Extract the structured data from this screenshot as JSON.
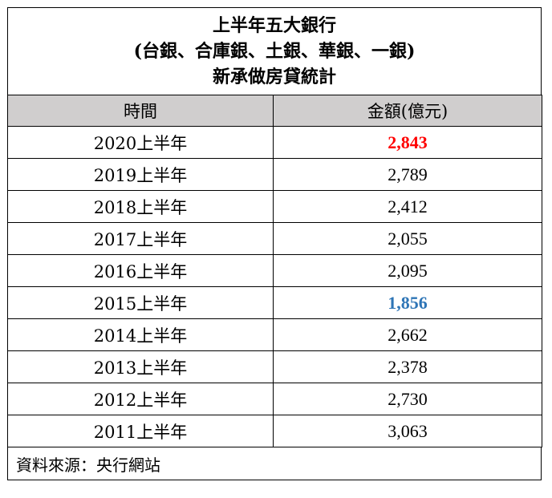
{
  "title": {
    "line1": "上半年五大銀行",
    "line2": "(台銀、合庫銀、土銀、華銀、一銀)",
    "line3": "新承做房貸統計"
  },
  "headers": {
    "period": "時間",
    "amount": "金額(億元)"
  },
  "rows": [
    {
      "period": "2020上半年",
      "amount": "2,843",
      "highlight": "red"
    },
    {
      "period": "2019上半年",
      "amount": "2,789",
      "highlight": ""
    },
    {
      "period": "2018上半年",
      "amount": "2,412",
      "highlight": ""
    },
    {
      "period": "2017上半年",
      "amount": "2,055",
      "highlight": ""
    },
    {
      "period": "2016上半年",
      "amount": "2,095",
      "highlight": ""
    },
    {
      "period": "2015上半年",
      "amount": "1,856",
      "highlight": "blue"
    },
    {
      "period": "2014上半年",
      "amount": "2,662",
      "highlight": ""
    },
    {
      "period": "2013上半年",
      "amount": "2,378",
      "highlight": ""
    },
    {
      "period": "2012上半年",
      "amount": "2,730",
      "highlight": ""
    },
    {
      "period": "2011上半年",
      "amount": "3,063",
      "highlight": ""
    }
  ],
  "source": "資料來源：央行網站",
  "colors": {
    "header_bg": "#d0cece",
    "max": "#ff0000",
    "min": "#2e75b6"
  }
}
